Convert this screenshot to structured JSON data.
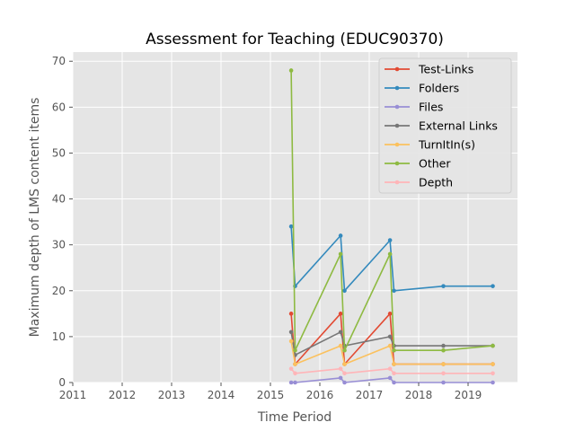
{
  "chart_data": {
    "type": "line",
    "title": "Assessment for Teaching (EDUC90370)",
    "xlabel": "Time Period",
    "ylabel": "Maximum depth of LMS content items",
    "xlim": [
      2011.0,
      2020.0
    ],
    "ylim": [
      0,
      72
    ],
    "xticks": [
      "2011",
      "2012",
      "2013",
      "2014",
      "2015",
      "2016",
      "2017",
      "2018",
      "2019"
    ],
    "yticks": [
      "0",
      "10",
      "20",
      "30",
      "40",
      "50",
      "60",
      "70"
    ],
    "grid": true,
    "legend_position": "top-right",
    "series": [
      {
        "name": "Test-Links",
        "color": "#e24a33",
        "x": [
          2015.42,
          2015.5,
          2016.42,
          2016.5,
          2017.42,
          2017.5,
          2018.5,
          2019.5
        ],
        "y": [
          15,
          4,
          15,
          4,
          15,
          4,
          4,
          4
        ]
      },
      {
        "name": "Folders",
        "color": "#348abd",
        "x": [
          2015.42,
          2015.5,
          2016.42,
          2016.5,
          2017.42,
          2017.5,
          2018.5,
          2019.5
        ],
        "y": [
          34,
          21,
          32,
          20,
          31,
          20,
          21,
          21
        ]
      },
      {
        "name": "Files",
        "color": "#988ed5",
        "x": [
          2015.42,
          2015.5,
          2016.42,
          2016.5,
          2017.42,
          2017.5,
          2018.5,
          2019.5
        ],
        "y": [
          0,
          0,
          1,
          0,
          1,
          0,
          0,
          0
        ]
      },
      {
        "name": "External Links",
        "color": "#777777",
        "x": [
          2015.42,
          2015.5,
          2016.42,
          2016.5,
          2017.42,
          2017.5,
          2018.5,
          2019.5
        ],
        "y": [
          11,
          6,
          11,
          8,
          10,
          8,
          8,
          8
        ]
      },
      {
        "name": "TurnItIn(s)",
        "color": "#fbc15e",
        "x": [
          2015.42,
          2015.5,
          2016.42,
          2016.5,
          2017.42,
          2017.5,
          2018.5,
          2019.5
        ],
        "y": [
          9,
          4,
          8,
          4,
          8,
          4,
          4,
          4
        ]
      },
      {
        "name": "Other",
        "color": "#8eba42",
        "x": [
          2015.42,
          2015.5,
          2016.42,
          2016.5,
          2017.42,
          2017.5,
          2018.5,
          2019.5
        ],
        "y": [
          68,
          7,
          28,
          7,
          28,
          7,
          7,
          8
        ]
      },
      {
        "name": "Depth",
        "color": "#ffb5b8",
        "x": [
          2015.42,
          2015.5,
          2016.42,
          2016.5,
          2017.42,
          2017.5,
          2018.5,
          2019.5
        ],
        "y": [
          3,
          2,
          3,
          2,
          3,
          2,
          2,
          2
        ]
      }
    ]
  }
}
